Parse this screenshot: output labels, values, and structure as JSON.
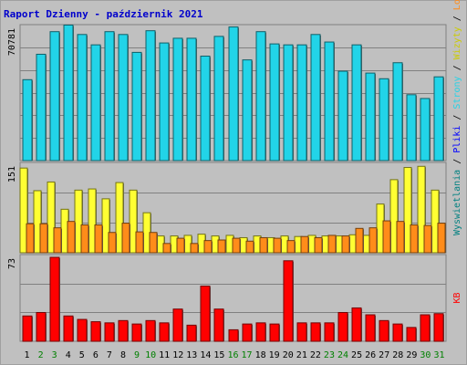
{
  "chart_data": {
    "title": "Raport Dzienny -  październik 2021",
    "x": [
      1,
      2,
      3,
      4,
      5,
      6,
      7,
      8,
      9,
      10,
      11,
      12,
      13,
      14,
      15,
      16,
      17,
      18,
      19,
      20,
      21,
      22,
      23,
      24,
      25,
      26,
      27,
      28,
      29,
      30,
      31
    ],
    "weekend_days": [
      2,
      3,
      9,
      10,
      16,
      17,
      23,
      24,
      30,
      31
    ],
    "colors": {
      "background": "#c0c0c0",
      "frame_outer": "#a0a0a0",
      "title": "#0000cc",
      "weekday_tick": "#000000",
      "weekend_tick": "#008000",
      "gridline": "#808080",
      "wizyty": "#22d4e8",
      "strony": "#ffff33",
      "pliki": "#0000ff",
      "lokalizacje": "#ff8c1a",
      "kb": "#ff0000"
    },
    "panels": [
      {
        "type": "bar",
        "ymax_label": "70781",
        "ymax": 70781,
        "series": [
          {
            "key": "wyswietlenia",
            "color": "#22d4e8",
            "values": [
              43000,
              56500,
              68500,
              72000,
              67000,
              61500,
              68500,
              67000,
              57500,
              69000,
              62500,
              65000,
              65000,
              55500,
              66000,
              71000,
              53500,
              68500,
              62000,
              61500,
              61500,
              67000,
              63000,
              47500,
              61500,
              46500,
              43500,
              52000,
              35000,
              33000,
              44500
            ]
          }
        ],
        "right_label": {
          "parts": [
            {
              "text": "Wyswietlania",
              "color": "#008080"
            },
            {
              "text": " / ",
              "color": "#000000"
            },
            {
              "text": "Pliki",
              "color": "#0000ff"
            },
            {
              "text": " / ",
              "color": "#000000"
            },
            {
              "text": "Strony",
              "color": "#22d4e8"
            },
            {
              "text": " / ",
              "color": "#000000"
            },
            {
              "text": "Wizyty",
              "color": "#cccc00"
            },
            {
              "text": " / ",
              "color": "#000000"
            },
            {
              "text": "Lokalizacje",
              "color": "#ff8c1a"
            }
          ]
        }
      },
      {
        "type": "bar",
        "ymax_label": "151",
        "ymax": 151,
        "series": [
          {
            "key": "wizyty",
            "color": "#ffff33",
            "values": [
              146,
              107,
              122,
              75,
              108,
              110,
              93,
              121,
              108,
              69,
              29,
              29,
              30,
              32,
              29,
              30,
              26,
              29,
              26,
              29,
              28,
              30,
              29,
              29,
              31,
              30,
              84,
              126,
              147,
              149,
              108
            ]
          },
          {
            "key": "lokalizacje",
            "color": "#ff8c1a",
            "values": [
              50,
              50,
              43,
              54,
              48,
              48,
              35,
              51,
              36,
              35,
              16,
              25,
              16,
              21,
              22,
              25,
              20,
              26,
              25,
              21,
              28,
              26,
              30,
              29,
              42,
              43,
              55,
              54,
              48,
              47,
              51
            ]
          }
        ]
      },
      {
        "type": "bar",
        "ymax_label": "73",
        "ymax": 73,
        "series": [
          {
            "key": "kb",
            "color": "#ff0000",
            "values": [
              22,
              25,
              73,
              22,
              19,
              17,
              16,
              18,
              15,
              18,
              16,
              28,
              14,
              48,
              28,
              10,
              15,
              16,
              15,
              70,
              16,
              16,
              16,
              25,
              29,
              23,
              18,
              15,
              12,
              23,
              24
            ]
          }
        ],
        "right_label": {
          "parts": [
            {
              "text": "KB",
              "color": "#ff0000"
            }
          ]
        }
      }
    ]
  }
}
